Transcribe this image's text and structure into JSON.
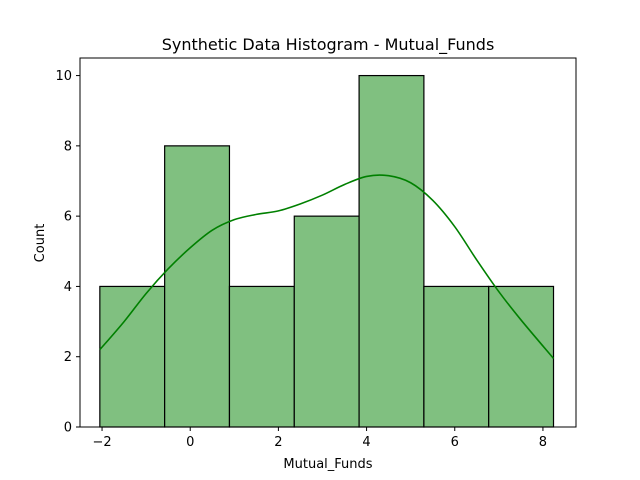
{
  "chart_data": {
    "type": "bar",
    "title": "Synthetic Data Histogram - Mutual_Funds",
    "xlabel": "Mutual_Funds",
    "ylabel": "Count",
    "xlim": [
      -2.5,
      8.75
    ],
    "ylim": [
      0,
      10.5
    ],
    "xticks": [
      -2,
      0,
      2,
      4,
      6,
      8
    ],
    "yticks": [
      0,
      2,
      4,
      6,
      8,
      10
    ],
    "bin_edges": [
      -2.05,
      -0.58,
      0.89,
      2.36,
      3.83,
      5.3,
      6.77,
      8.24
    ],
    "values": [
      4,
      8,
      4,
      6,
      10,
      4,
      4
    ],
    "bar_color": "#80c080",
    "edge_color": "#000000",
    "kde": {
      "color": "#008000",
      "x": [
        -2.05,
        -1.5,
        -1.0,
        -0.5,
        0.0,
        0.5,
        1.0,
        1.5,
        2.0,
        2.5,
        3.0,
        3.5,
        4.0,
        4.5,
        5.0,
        5.5,
        6.0,
        6.5,
        7.0,
        7.5,
        8.24
      ],
      "y": [
        2.2,
        3.0,
        3.8,
        4.5,
        5.1,
        5.6,
        5.9,
        6.05,
        6.15,
        6.35,
        6.6,
        6.9,
        7.13,
        7.15,
        6.95,
        6.45,
        5.7,
        4.75,
        3.85,
        3.05,
        1.95
      ]
    },
    "grid": false,
    "legend": "none"
  }
}
